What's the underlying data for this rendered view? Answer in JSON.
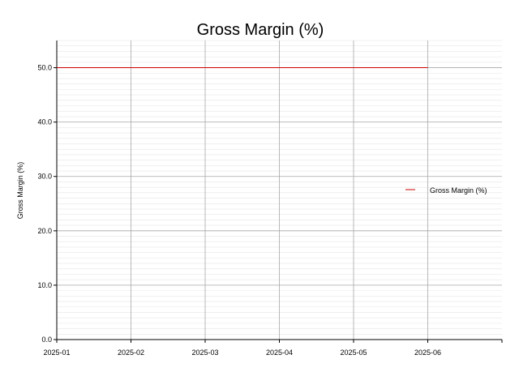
{
  "chart_data": {
    "type": "line",
    "title": "Gross Margin (%)",
    "xlabel": "",
    "ylabel": "Gross Margin (%)",
    "x": [
      "2025-01",
      "2025-02",
      "2025-03",
      "2025-04",
      "2025-05",
      "2025-06"
    ],
    "x_ticks": [
      "2025-01",
      "2025-02",
      "2025-03",
      "2025-04",
      "2025-05",
      "2025-06"
    ],
    "xlim": [
      "2025-01",
      "2025-07"
    ],
    "y_ticks": [
      "0.0",
      "10.0",
      "20.0",
      "30.0",
      "40.0",
      "50.0"
    ],
    "ylim": [
      0,
      55
    ],
    "grid": true,
    "minor_grid": true,
    "legend_position": "right",
    "series": [
      {
        "name": "Gross Margin (%)",
        "color": "#cc0000",
        "values": [
          50.0,
          50.0,
          50.0,
          50.0,
          50.0,
          50.0
        ]
      }
    ]
  }
}
